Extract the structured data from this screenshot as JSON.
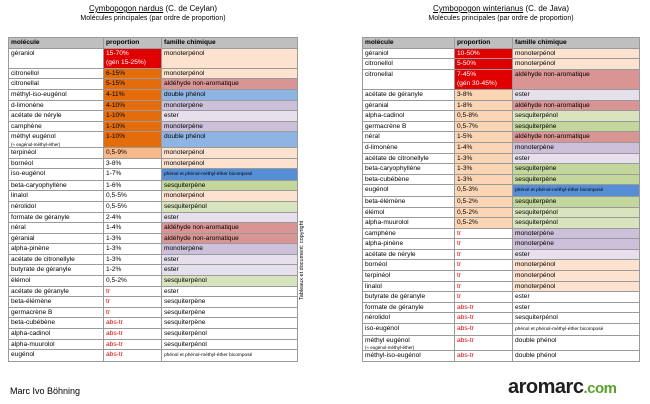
{
  "left": {
    "title_name": "Cymbopogon nardus",
    "title_origin": "(C. de Ceylan)",
    "subtitle": "Molécules principales (par ordre de proportion)",
    "headers": [
      "molécule",
      "proportion",
      "famille chimique"
    ],
    "rows": [
      {
        "molecule": "géraniol",
        "proportion": "15-70%",
        "proportion_note": "(gén 15-25%)",
        "family": "monoterpénol",
        "proportion_bg": "#e00000",
        "proportion_fg": "#ffffff",
        "family_bg": "#fde3cf"
      },
      {
        "molecule": "citronellol",
        "proportion": "6-15%",
        "family": "monoterpénol",
        "proportion_bg": "#e46c0a",
        "family_bg": "#fde3cf"
      },
      {
        "molecule": "citronellal",
        "proportion": "5-15%",
        "family": "aldéhyde non-aromatique",
        "proportion_bg": "#e46c0a",
        "family_bg": "#d99594"
      },
      {
        "molecule": "méthyl-iso-eugénol",
        "proportion": "4-11%",
        "family": "double phénol",
        "proportion_bg": "#e46c0a",
        "family_bg": "#8eb4e3"
      },
      {
        "molecule": "d-limonène",
        "proportion": "4-10%",
        "family": "monoterpène",
        "proportion_bg": "#e46c0a",
        "family_bg": "#ccc0da"
      },
      {
        "molecule": "acétate de néryle",
        "proportion": "1-10%",
        "family": "ester",
        "proportion_bg": "#e46c0a",
        "family_bg": "#e6e0ec"
      },
      {
        "molecule": "camphène",
        "proportion": "1-10%",
        "family": "monoterpène",
        "proportion_bg": "#e46c0a",
        "family_bg": "#ccc0da"
      },
      {
        "molecule": "méthyl eugénol",
        "molecule_note": "(≈ eugénol-méthyl-éther)",
        "proportion": "1-10%",
        "family": "double phénol",
        "proportion_bg": "#e46c0a",
        "family_bg": "#8eb4e3"
      },
      {
        "molecule": "terpinéol",
        "proportion": "0,5-9%",
        "family": "monoterpénol",
        "proportion_bg": "#f8b98a",
        "family_bg": "#fde3cf"
      },
      {
        "molecule": "bornéol",
        "proportion": "3-8%",
        "family": "monoterpénol",
        "family_bg": "#fde3cf"
      },
      {
        "molecule": "iso-eugénol",
        "proportion": "1-7%",
        "family": "phénol et phénol-méthyl-éther bicomposé",
        "family_bg": "#558ed5"
      },
      {
        "molecule": "beta-caryophyllène",
        "proportion": "1-6%",
        "family": "sesquiterpène",
        "family_bg": "#c3d69b"
      },
      {
        "molecule": "linalol",
        "proportion": "0,5-5%",
        "family": "monoterpénol",
        "family_bg": "#fde3cf"
      },
      {
        "molecule": "nérolidol",
        "proportion": "0,5-5%",
        "family": "sesquiterpénol",
        "family_bg": "#d7e4bd"
      },
      {
        "molecule": "formate de géranyle",
        "proportion": "2-4%",
        "family": "ester",
        "family_bg": "#e6e0ec"
      },
      {
        "molecule": "néral",
        "proportion": "1-4%",
        "family": "aldéhyde non-aromatique",
        "family_bg": "#d99594"
      },
      {
        "molecule": "géranial",
        "proportion": "1-3%",
        "family": "aldéhyde non-aromatique",
        "family_bg": "#d99594"
      },
      {
        "molecule": "alpha-pinène",
        "proportion": "1-3%",
        "family": "monoterpène",
        "family_bg": "#ccc0da"
      },
      {
        "molecule": "acétate de citronellyle",
        "proportion": "1-3%",
        "family": "ester",
        "family_bg": "#e6e0ec"
      },
      {
        "molecule": "butyrate de géranyle",
        "proportion": "1-2%",
        "family": "ester",
        "family_bg": "#e6e0ec"
      },
      {
        "molecule": "élémol",
        "proportion": "0,5-2%",
        "family": "sesquiterpénol",
        "family_bg": "#d7e4bd"
      },
      {
        "molecule": "acétate de géranyle",
        "proportion": "tr",
        "family": "ester",
        "proportion_fg": "#e00000"
      },
      {
        "molecule": "beta-élémène",
        "proportion": "tr",
        "family": "sesquiterpène",
        "proportion_fg": "#e00000"
      },
      {
        "molecule": "germacrène B",
        "proportion": "tr",
        "family": "sesquiterpène",
        "proportion_fg": "#e00000"
      },
      {
        "molecule": "beta-cubébène",
        "proportion": "abs-tr",
        "family": "sesquiterpène",
        "proportion_fg": "#e00000"
      },
      {
        "molecule": "alpha-cadinol",
        "proportion": "abs-tr",
        "family": "sesquiterpénol",
        "proportion_fg": "#e00000"
      },
      {
        "molecule": "alpha-muurolol",
        "proportion": "abs-tr",
        "family": "sesquiterpénol",
        "proportion_fg": "#e00000"
      },
      {
        "molecule": "eugénol",
        "proportion": "abs-tr",
        "family": "phénol et phénol-méthyl-éther bicomposé",
        "proportion_fg": "#e00000"
      }
    ]
  },
  "right": {
    "title_name": "Cymbopogon winterianus",
    "title_origin": "(C. de Java)",
    "subtitle": "Molécules principales (par ordre de proportion)",
    "headers": [
      "molécule",
      "proportion",
      "famille chimique"
    ],
    "rows": [
      {
        "molecule": "géraniol",
        "proportion": "10-50%",
        "family": "monoterpénol",
        "proportion_bg": "#e00000",
        "proportion_fg": "#ffffff",
        "family_bg": "#fde3cf"
      },
      {
        "molecule": "citronellol",
        "proportion": "5-50%",
        "family": "monoterpénol",
        "proportion_bg": "#e00000",
        "proportion_fg": "#ffffff",
        "family_bg": "#fde3cf"
      },
      {
        "molecule": "citronellal",
        "proportion": "7-45%",
        "proportion_note": "(gén 30-45%)",
        "family": "aldéhyde non-aromatique",
        "proportion_bg": "#e00000",
        "proportion_fg": "#ffffff",
        "family_bg": "#d99594"
      },
      {
        "molecule": "acétate de géranyle",
        "proportion": "3-8%",
        "family": "ester",
        "proportion_bg": "#fcd5b4",
        "family_bg": "#e6e0ec"
      },
      {
        "molecule": "géranial",
        "proportion": "1-8%",
        "family": "aldéhyde non-aromatique",
        "proportion_bg": "#fcd5b4",
        "family_bg": "#d99594"
      },
      {
        "molecule": "alpha-cadinol",
        "proportion": "0,5-8%",
        "family": "sesquiterpénol",
        "proportion_bg": "#fcd5b4",
        "family_bg": "#d7e4bd"
      },
      {
        "molecule": "germacrène B",
        "proportion": "0,5-7%",
        "family": "sesquiterpène",
        "proportion_bg": "#fcd5b4",
        "family_bg": "#c3d69b"
      },
      {
        "molecule": "néral",
        "proportion": "1-5%",
        "family": "aldéhyde non-aromatique",
        "proportion_bg": "#fcd5b4",
        "family_bg": "#d99594"
      },
      {
        "molecule": "d-limonène",
        "proportion": "1-4%",
        "family": "monoterpène",
        "proportion_bg": "#fcd5b4",
        "family_bg": "#ccc0da"
      },
      {
        "molecule": "acétate de citronellyle",
        "proportion": "1-3%",
        "family": "ester",
        "proportion_bg": "#fcd5b4",
        "family_bg": "#e6e0ec"
      },
      {
        "molecule": "beta-caryophyllène",
        "proportion": "1-3%",
        "family": "sesquiterpène",
        "proportion_bg": "#fcd5b4",
        "family_bg": "#c3d69b"
      },
      {
        "molecule": "beta-cubébène",
        "proportion": "1-3%",
        "family": "sesquiterpène",
        "proportion_bg": "#fcd5b4",
        "family_bg": "#c3d69b"
      },
      {
        "molecule": "eugénol",
        "proportion": "0,5-3%",
        "family": "phénol et phénol-méthyl-éther bicomposé",
        "proportion_bg": "#fcd5b4",
        "family_bg": "#558ed5"
      },
      {
        "molecule": "beta-élémène",
        "proportion": "0,5-2%",
        "family": "sesquiterpène",
        "proportion_bg": "#fcd5b4",
        "family_bg": "#c3d69b"
      },
      {
        "molecule": "élémol",
        "proportion": "0,5-2%",
        "family": "sesquiterpénol",
        "proportion_bg": "#fcd5b4",
        "family_bg": "#d7e4bd"
      },
      {
        "molecule": "alpha-muurolol",
        "proportion": "0,5-2%",
        "family": "sesquiterpénol",
        "proportion_bg": "#fcd5b4",
        "family_bg": "#d7e4bd"
      },
      {
        "molecule": "camphène",
        "proportion": "tr",
        "family": "monoterpène",
        "proportion_fg": "#e00000",
        "family_bg": "#ccc0da"
      },
      {
        "molecule": "alpha-pinène",
        "proportion": "tr",
        "family": "monoterpène",
        "proportion_fg": "#e00000",
        "family_bg": "#ccc0da"
      },
      {
        "molecule": "acétate de néryle",
        "proportion": "tr",
        "family": "ester",
        "proportion_fg": "#e00000",
        "family_bg": "#e6e0ec"
      },
      {
        "molecule": "bornéol",
        "proportion": "tr",
        "family": "monoterpénol",
        "proportion_fg": "#e00000",
        "family_bg": "#fde3cf"
      },
      {
        "molecule": "terpinéol",
        "proportion": "tr",
        "family": "monoterpénol",
        "proportion_fg": "#e00000",
        "family_bg": "#fde3cf"
      },
      {
        "molecule": "linalol",
        "proportion": "tr",
        "family": "monoterpénol",
        "proportion_fg": "#e00000",
        "family_bg": "#fde3cf"
      },
      {
        "molecule": "butyrate de géranyle",
        "proportion": "tr",
        "family": "ester",
        "proportion_fg": "#e00000"
      },
      {
        "molecule": "formate de géranyle",
        "proportion": "abs-tr",
        "family": "ester",
        "proportion_fg": "#e00000"
      },
      {
        "molecule": "nérolidol",
        "proportion": "abs-tr",
        "family": "sesquiterpénol",
        "proportion_fg": "#e00000"
      },
      {
        "molecule": "iso-eugénol",
        "proportion": "abs-tr",
        "family": "phénol et phénol-méthyl-éther bicomposé",
        "proportion_fg": "#e00000"
      },
      {
        "molecule": "méthyl eugénol",
        "molecule_note": "(≈ eugénol-méthyl-éther)",
        "proportion": "abs-tr",
        "family": "double phénol",
        "proportion_fg": "#e00000"
      },
      {
        "molecule": "méthyl-iso-eugénol",
        "proportion": "abs-tr",
        "family": "double phénol",
        "proportion_fg": "#e00000"
      }
    ]
  },
  "copyright": "Tableaux et document: copyright",
  "author": "Marc Ivo Böhning",
  "logo": {
    "name": "aromarc",
    "tld": ".com"
  }
}
